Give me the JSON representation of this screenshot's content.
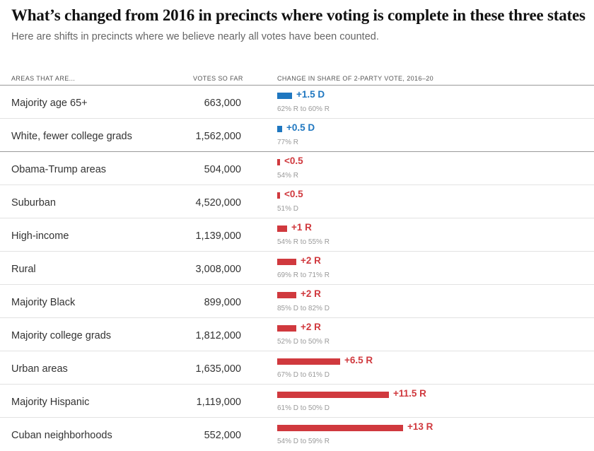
{
  "title": "What’s changed from 2016 in precincts where voting is complete in these three states",
  "subtitle": "Here are shifts in precincts where we believe nearly all votes have been counted.",
  "headers": {
    "area": "AREAS THAT ARE...",
    "votes": "VOTES SO FAR",
    "change": "CHANGE IN SHARE OF 2-PARTY VOTE, 2016–20"
  },
  "colors": {
    "dem": "#1f77c0",
    "rep": "#d0393e"
  },
  "chart_data": {
    "type": "bar",
    "title": "What’s changed from 2016 in precincts where voting is complete in these three states",
    "categories": [
      "Majority age 65+",
      "White, fewer college grads",
      "Obama-Trump areas",
      "Suburban",
      "High-income",
      "Rural",
      "Majority Black",
      "Majority college grads",
      "Urban areas",
      "Majority Hispanic",
      "Cuban neighborhoods"
    ],
    "series": [
      {
        "name": "Votes so far",
        "values": [
          663000,
          1562000,
          504000,
          4520000,
          1139000,
          3008000,
          899000,
          1812000,
          1635000,
          1119000,
          552000
        ]
      },
      {
        "name": "Change in share of 2-party vote, 2016–20",
        "values": [
          1.5,
          0.5,
          0.3,
          0.3,
          1,
          2,
          2,
          2,
          6.5,
          11.5,
          13
        ]
      }
    ],
    "rows": [
      {
        "area": "Majority age 65+",
        "votes": "663,000",
        "shift": "+1.5 D",
        "party": "D",
        "magnitude": 1.5,
        "detail": "62% R to 60% R"
      },
      {
        "area": "White, fewer college grads",
        "votes": "1,562,000",
        "shift": "+0.5 D",
        "party": "D",
        "magnitude": 0.5,
        "detail": "77% R"
      },
      {
        "area": "Obama-Trump areas",
        "votes": "504,000",
        "shift": "<0.5",
        "party": "R",
        "magnitude": 0.3,
        "detail": "54% R",
        "group_start": true
      },
      {
        "area": "Suburban",
        "votes": "4,520,000",
        "shift": "<0.5",
        "party": "R",
        "magnitude": 0.3,
        "detail": "51% D"
      },
      {
        "area": "High-income",
        "votes": "1,139,000",
        "shift": "+1 R",
        "party": "R",
        "magnitude": 1,
        "detail": "54% R to 55% R"
      },
      {
        "area": "Rural",
        "votes": "3,008,000",
        "shift": "+2 R",
        "party": "R",
        "magnitude": 2,
        "detail": "69% R to 71% R"
      },
      {
        "area": "Majority Black",
        "votes": "899,000",
        "shift": "+2 R",
        "party": "R",
        "magnitude": 2,
        "detail": "85% D to 82% D"
      },
      {
        "area": "Majority college grads",
        "votes": "1,812,000",
        "shift": "+2 R",
        "party": "R",
        "magnitude": 2,
        "detail": "52% D to 50% R"
      },
      {
        "area": "Urban areas",
        "votes": "1,635,000",
        "shift": "+6.5 R",
        "party": "R",
        "magnitude": 6.5,
        "detail": "67% D to 61% D"
      },
      {
        "area": "Majority Hispanic",
        "votes": "1,119,000",
        "shift": "+11.5 R",
        "party": "R",
        "magnitude": 11.5,
        "detail": "61% D to 50% D"
      },
      {
        "area": "Cuban neighborhoods",
        "votes": "552,000",
        "shift": "+13 R",
        "party": "R",
        "magnitude": 13,
        "detail": "54% D to 59% R"
      }
    ]
  }
}
